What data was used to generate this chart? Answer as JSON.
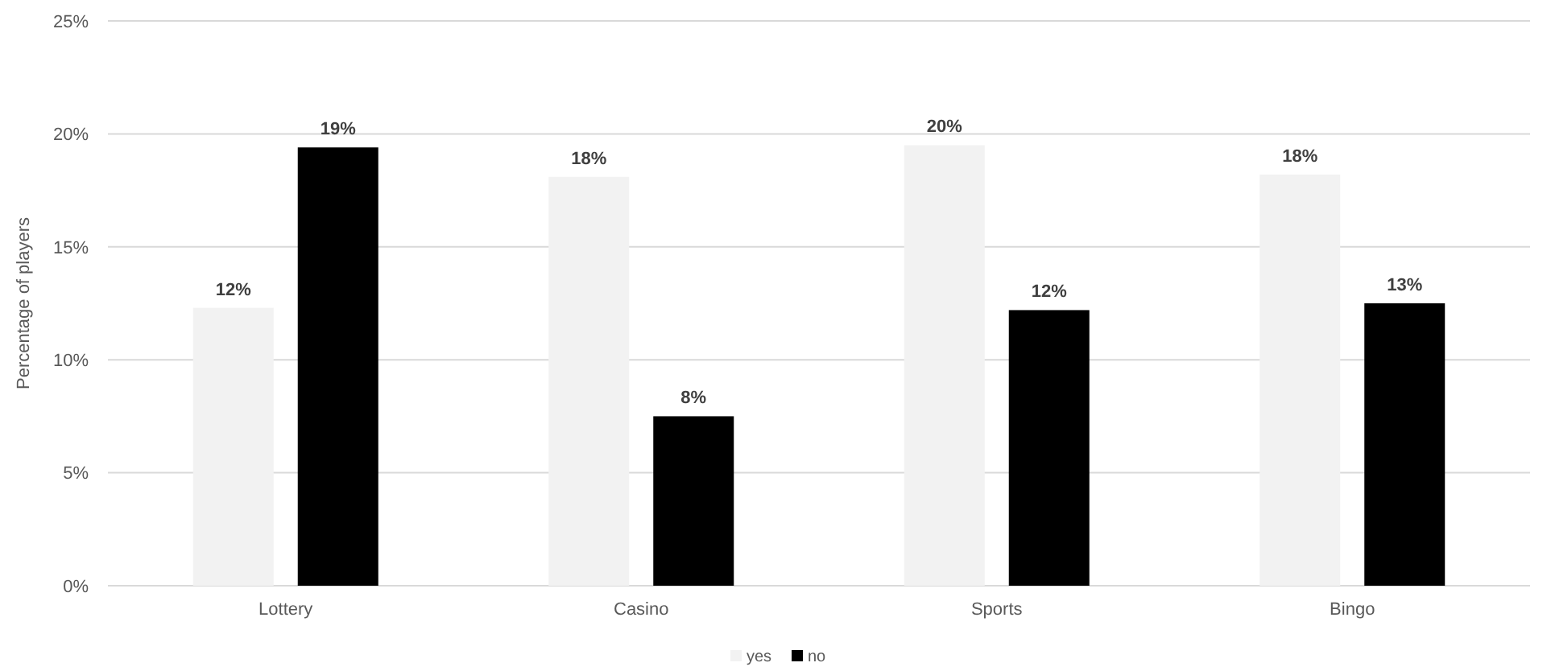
{
  "chart_data": {
    "type": "bar",
    "ylabel": "Percentage of players",
    "categories": [
      "Lottery",
      "Casino",
      "Sports",
      "Bingo"
    ],
    "series": [
      {
        "name": "yes",
        "color": "#f2f2f2",
        "values": [
          12.3,
          18.1,
          19.5,
          18.2
        ],
        "value_labels": [
          "12%",
          "18%",
          "20%",
          "18%"
        ]
      },
      {
        "name": "no",
        "color": "#000000",
        "values": [
          19.4,
          7.5,
          12.2,
          12.5
        ],
        "value_labels": [
          "19%",
          "8%",
          "12%",
          "13%"
        ]
      }
    ],
    "ylim": [
      0,
      25
    ],
    "yticks": [
      {
        "value": 0,
        "label": "0%"
      },
      {
        "value": 5,
        "label": "5%"
      },
      {
        "value": 10,
        "label": "10%"
      },
      {
        "value": 15,
        "label": "15%"
      },
      {
        "value": 20,
        "label": "20%"
      },
      {
        "value": 25,
        "label": "25%"
      }
    ],
    "grid": "y",
    "legend": "bottom"
  }
}
